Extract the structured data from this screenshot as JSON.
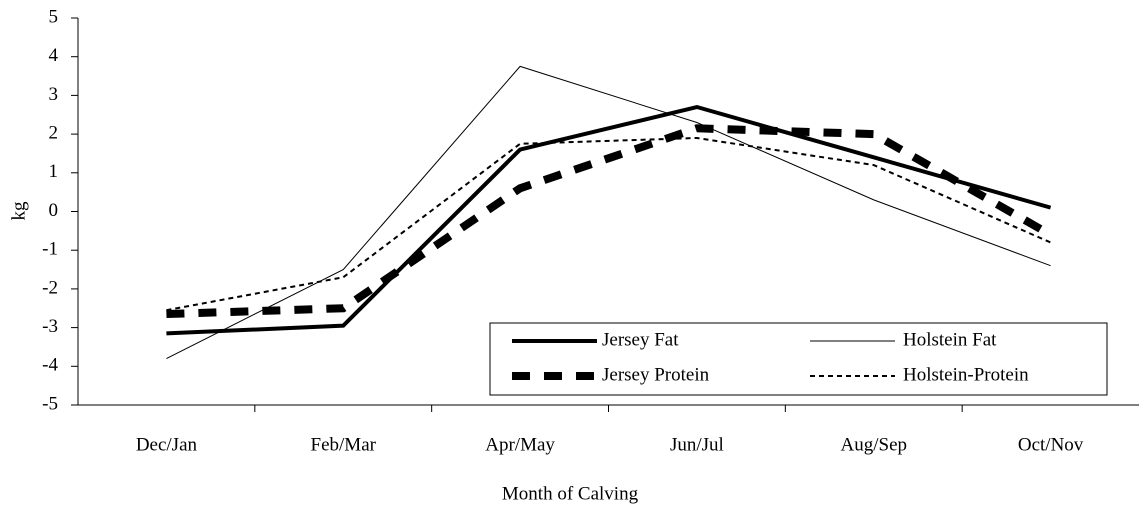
{
  "chart_data": {
    "type": "line",
    "x_label": "Month of Calving",
    "y_label": "kg",
    "categories": [
      "Dec/Jan",
      "Feb/Mar",
      "Apr/May",
      "Jun/Jul",
      "Aug/Sep",
      "Oct/Nov"
    ],
    "series": [
      {
        "name": "Jersey Fat",
        "color": "#000000",
        "line_width": 4,
        "dash": "none",
        "values": [
          -3.15,
          -2.95,
          1.6,
          2.7,
          1.4,
          0.1
        ]
      },
      {
        "name": "Holstein Fat",
        "color": "#000000",
        "line_width": 1,
        "dash": "none",
        "values": [
          -3.8,
          -1.5,
          3.75,
          2.3,
          0.3,
          -1.4
        ]
      },
      {
        "name": "Jersey Protein",
        "color": "#000000",
        "line_width": 8,
        "dash": "18 14",
        "values": [
          -2.65,
          -2.5,
          0.6,
          2.15,
          2.0,
          -0.6
        ]
      },
      {
        "name": "Holstein-Protein",
        "color": "#000000",
        "line_width": 2,
        "dash": "5 4",
        "values": [
          -2.55,
          -1.7,
          1.75,
          1.9,
          1.2,
          -0.8
        ]
      }
    ],
    "ylim": [
      -5,
      5
    ],
    "yticks": [
      -5,
      -4,
      -3,
      -2,
      -1,
      0,
      1,
      2,
      3,
      4,
      5
    ],
    "legend": "lower right",
    "grid": false
  }
}
